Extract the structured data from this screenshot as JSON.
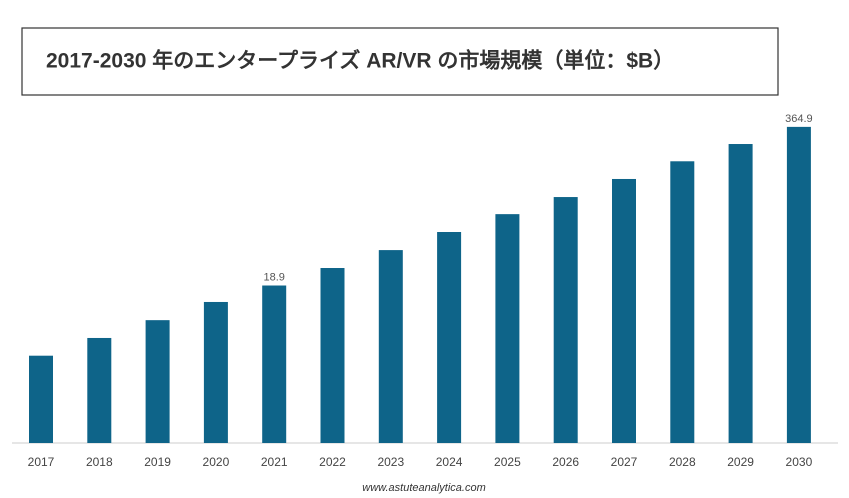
{
  "chart_data": {
    "type": "bar",
    "title": "2017-2030 年のエンタープライズ AR/VR の市場規模（単位：$B）",
    "categories": [
      "2017",
      "2018",
      "2019",
      "2020",
      "2021",
      "2022",
      "2023",
      "2024",
      "2025",
      "2026",
      "2027",
      "2028",
      "2029",
      "2030"
    ],
    "values": [
      5.1,
      7.1,
      9.9,
      13.9,
      18.9,
      26.2,
      36.6,
      51.3,
      71.6,
      98.5,
      138,
      192,
      265,
      364.9
    ],
    "value_labels": [
      null,
      null,
      null,
      null,
      "18.9",
      null,
      null,
      null,
      null,
      null,
      null,
      null,
      null,
      "364.9"
    ],
    "color": "#0e6489",
    "log_scale": true,
    "ylim": [
      1,
      500
    ],
    "footer": "www.astuteanalytica.com"
  }
}
